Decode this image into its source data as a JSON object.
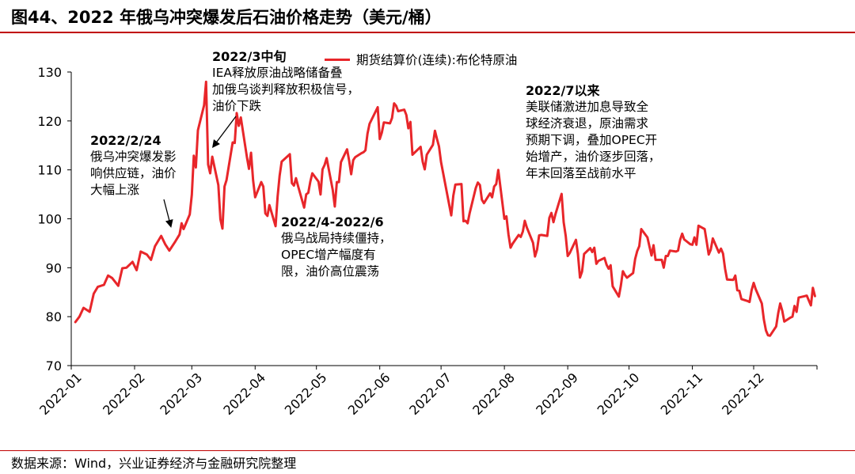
{
  "title": "图44、2022 年俄乌冲突爆发后石油价格走势（美元/桶）",
  "source": "数据来源：Wind，兴业证券经济与金融研究院整理",
  "colors": {
    "series": "#e8262a",
    "accent": "#c00000",
    "axis": "#000000"
  },
  "chart_data": {
    "type": "line",
    "y_ticks": [
      "70",
      "80",
      "90",
      "100",
      "110",
      "120",
      "130"
    ],
    "x_ticks": [
      "2022-01",
      "2022-02",
      "2022-03",
      "2022-04",
      "2022-05",
      "2022-06",
      "2022-07",
      "2022-08",
      "2022-09",
      "2022-10",
      "2022-11",
      "2022-12"
    ],
    "ylim": [
      70,
      130
    ],
    "xlim": [
      "2022-01-01",
      "2022-12-31"
    ],
    "legend": "top-center",
    "grid": false,
    "series": [
      {
        "name": "期货结算价(连续):布伦特原油",
        "points": [
          [
            "2022-01-03",
            78.9
          ],
          [
            "2022-01-05",
            80.0
          ],
          [
            "2022-01-07",
            81.8
          ],
          [
            "2022-01-10",
            81.0
          ],
          [
            "2022-01-12",
            84.7
          ],
          [
            "2022-01-14",
            86.1
          ],
          [
            "2022-01-17",
            86.5
          ],
          [
            "2022-01-19",
            88.4
          ],
          [
            "2022-01-21",
            87.9
          ],
          [
            "2022-01-24",
            86.3
          ],
          [
            "2022-01-26",
            89.9
          ],
          [
            "2022-01-28",
            90.0
          ],
          [
            "2022-01-31",
            91.2
          ],
          [
            "2022-02-02",
            89.5
          ],
          [
            "2022-02-04",
            93.3
          ],
          [
            "2022-02-07",
            92.7
          ],
          [
            "2022-02-09",
            91.6
          ],
          [
            "2022-02-11",
            94.4
          ],
          [
            "2022-02-14",
            96.5
          ],
          [
            "2022-02-16",
            94.8
          ],
          [
            "2022-02-18",
            93.5
          ],
          [
            "2022-02-21",
            95.4
          ],
          [
            "2022-02-23",
            96.8
          ],
          [
            "2022-02-24",
            99.1
          ],
          [
            "2022-02-25",
            97.9
          ],
          [
            "2022-02-28",
            100.9
          ],
          [
            "2022-03-01",
            104.9
          ],
          [
            "2022-03-02",
            112.9
          ],
          [
            "2022-03-03",
            110.5
          ],
          [
            "2022-03-04",
            118.1
          ],
          [
            "2022-03-07",
            123.2
          ],
          [
            "2022-03-08",
            128.0
          ],
          [
            "2022-03-09",
            111.1
          ],
          [
            "2022-03-10",
            109.3
          ],
          [
            "2022-03-11",
            112.7
          ],
          [
            "2022-03-14",
            106.9
          ],
          [
            "2022-03-15",
            99.9
          ],
          [
            "2022-03-16",
            98.0
          ],
          [
            "2022-03-17",
            106.6
          ],
          [
            "2022-03-18",
            107.9
          ],
          [
            "2022-03-21",
            115.6
          ],
          [
            "2022-03-22",
            115.5
          ],
          [
            "2022-03-23",
            121.6
          ],
          [
            "2022-03-24",
            119.0
          ],
          [
            "2022-03-25",
            120.7
          ],
          [
            "2022-03-28",
            112.5
          ],
          [
            "2022-03-29",
            110.2
          ],
          [
            "2022-03-30",
            113.5
          ],
          [
            "2022-03-31",
            107.9
          ],
          [
            "2022-04-01",
            104.4
          ],
          [
            "2022-04-04",
            107.5
          ],
          [
            "2022-04-05",
            106.6
          ],
          [
            "2022-04-06",
            101.1
          ],
          [
            "2022-04-07",
            100.6
          ],
          [
            "2022-04-08",
            102.8
          ],
          [
            "2022-04-11",
            98.5
          ],
          [
            "2022-04-12",
            104.6
          ],
          [
            "2022-04-13",
            108.8
          ],
          [
            "2022-04-14",
            111.7
          ],
          [
            "2022-04-18",
            113.2
          ],
          [
            "2022-04-19",
            107.3
          ],
          [
            "2022-04-20",
            106.8
          ],
          [
            "2022-04-21",
            108.3
          ],
          [
            "2022-04-22",
            106.7
          ],
          [
            "2022-04-25",
            102.3
          ],
          [
            "2022-04-26",
            104.99
          ],
          [
            "2022-04-27",
            105.3
          ],
          [
            "2022-04-28",
            107.6
          ],
          [
            "2022-04-29",
            109.3
          ],
          [
            "2022-05-02",
            107.6
          ],
          [
            "2022-05-03",
            104.97
          ],
          [
            "2022-05-04",
            110.1
          ],
          [
            "2022-05-05",
            111.0
          ],
          [
            "2022-05-06",
            112.4
          ],
          [
            "2022-05-09",
            105.9
          ],
          [
            "2022-05-10",
            102.5
          ],
          [
            "2022-05-11",
            107.5
          ],
          [
            "2022-05-12",
            107.5
          ],
          [
            "2022-05-13",
            111.6
          ],
          [
            "2022-05-16",
            114.2
          ],
          [
            "2022-05-17",
            111.9
          ],
          [
            "2022-05-18",
            109.1
          ],
          [
            "2022-05-19",
            112.0
          ],
          [
            "2022-05-20",
            112.6
          ],
          [
            "2022-05-23",
            113.4
          ],
          [
            "2022-05-24",
            113.6
          ],
          [
            "2022-05-25",
            114.0
          ],
          [
            "2022-05-26",
            117.4
          ],
          [
            "2022-05-27",
            119.4
          ],
          [
            "2022-05-31",
            122.8
          ],
          [
            "2022-06-01",
            116.3
          ],
          [
            "2022-06-02",
            117.6
          ],
          [
            "2022-06-03",
            119.7
          ],
          [
            "2022-06-06",
            119.5
          ],
          [
            "2022-06-07",
            120.6
          ],
          [
            "2022-06-08",
            123.6
          ],
          [
            "2022-06-09",
            123.1
          ],
          [
            "2022-06-10",
            122.0
          ],
          [
            "2022-06-13",
            122.3
          ],
          [
            "2022-06-14",
            121.2
          ],
          [
            "2022-06-15",
            118.5
          ],
          [
            "2022-06-16",
            119.8
          ],
          [
            "2022-06-17",
            113.1
          ],
          [
            "2022-06-21",
            114.7
          ],
          [
            "2022-06-22",
            111.7
          ],
          [
            "2022-06-23",
            110.1
          ],
          [
            "2022-06-24",
            113.1
          ],
          [
            "2022-06-27",
            115.1
          ],
          [
            "2022-06-28",
            118.0
          ],
          [
            "2022-06-29",
            116.3
          ],
          [
            "2022-06-30",
            114.8
          ],
          [
            "2022-07-01",
            111.6
          ],
          [
            "2022-07-05",
            102.8
          ],
          [
            "2022-07-06",
            100.7
          ],
          [
            "2022-07-07",
            104.7
          ],
          [
            "2022-07-08",
            107.0
          ],
          [
            "2022-07-11",
            107.1
          ],
          [
            "2022-07-12",
            99.5
          ],
          [
            "2022-07-13",
            99.6
          ],
          [
            "2022-07-14",
            99.1
          ],
          [
            "2022-07-15",
            101.2
          ],
          [
            "2022-07-18",
            106.3
          ],
          [
            "2022-07-19",
            107.4
          ],
          [
            "2022-07-20",
            106.9
          ],
          [
            "2022-07-21",
            103.9
          ],
          [
            "2022-07-22",
            103.2
          ],
          [
            "2022-07-25",
            105.2
          ],
          [
            "2022-07-26",
            104.4
          ],
          [
            "2022-07-27",
            106.6
          ],
          [
            "2022-07-28",
            107.1
          ],
          [
            "2022-07-29",
            110.0
          ],
          [
            "2022-08-01",
            100.0
          ],
          [
            "2022-08-02",
            100.5
          ],
          [
            "2022-08-03",
            96.8
          ],
          [
            "2022-08-04",
            94.1
          ],
          [
            "2022-08-05",
            94.9
          ],
          [
            "2022-08-08",
            96.7
          ],
          [
            "2022-08-09",
            96.3
          ],
          [
            "2022-08-10",
            97.4
          ],
          [
            "2022-08-11",
            99.6
          ],
          [
            "2022-08-12",
            98.2
          ],
          [
            "2022-08-15",
            95.1
          ],
          [
            "2022-08-16",
            92.3
          ],
          [
            "2022-08-17",
            93.7
          ],
          [
            "2022-08-18",
            96.6
          ],
          [
            "2022-08-19",
            96.7
          ],
          [
            "2022-08-22",
            96.5
          ],
          [
            "2022-08-23",
            100.2
          ],
          [
            "2022-08-24",
            101.2
          ],
          [
            "2022-08-25",
            99.3
          ],
          [
            "2022-08-26",
            100.99
          ],
          [
            "2022-08-29",
            105.1
          ],
          [
            "2022-08-30",
            99.3
          ],
          [
            "2022-08-31",
            96.5
          ],
          [
            "2022-09-01",
            92.4
          ],
          [
            "2022-09-02",
            93.0
          ],
          [
            "2022-09-05",
            95.7
          ],
          [
            "2022-09-06",
            92.8
          ],
          [
            "2022-09-07",
            88.0
          ],
          [
            "2022-09-08",
            89.2
          ],
          [
            "2022-09-09",
            92.8
          ],
          [
            "2022-09-12",
            94.0
          ],
          [
            "2022-09-13",
            93.2
          ],
          [
            "2022-09-14",
            94.1
          ],
          [
            "2022-09-15",
            90.8
          ],
          [
            "2022-09-16",
            91.4
          ],
          [
            "2022-09-19",
            92.0
          ],
          [
            "2022-09-20",
            90.6
          ],
          [
            "2022-09-21",
            89.8
          ],
          [
            "2022-09-22",
            90.5
          ],
          [
            "2022-09-23",
            86.2
          ],
          [
            "2022-09-26",
            84.1
          ],
          [
            "2022-09-27",
            86.3
          ],
          [
            "2022-09-28",
            89.3
          ],
          [
            "2022-09-29",
            88.5
          ],
          [
            "2022-09-30",
            87.96
          ],
          [
            "2022-10-03",
            88.9
          ],
          [
            "2022-10-04",
            91.8
          ],
          [
            "2022-10-05",
            93.4
          ],
          [
            "2022-10-06",
            94.4
          ],
          [
            "2022-10-07",
            97.9
          ],
          [
            "2022-10-10",
            96.2
          ],
          [
            "2022-10-11",
            94.3
          ],
          [
            "2022-10-12",
            92.5
          ],
          [
            "2022-10-13",
            94.6
          ],
          [
            "2022-10-14",
            91.6
          ],
          [
            "2022-10-17",
            91.6
          ],
          [
            "2022-10-18",
            90.0
          ],
          [
            "2022-10-19",
            92.4
          ],
          [
            "2022-10-20",
            92.4
          ],
          [
            "2022-10-21",
            93.5
          ],
          [
            "2022-10-24",
            93.3
          ],
          [
            "2022-10-25",
            93.5
          ],
          [
            "2022-10-26",
            95.7
          ],
          [
            "2022-10-27",
            96.96
          ],
          [
            "2022-10-28",
            95.8
          ],
          [
            "2022-10-31",
            94.8
          ],
          [
            "2022-11-01",
            94.7
          ],
          [
            "2022-11-02",
            96.2
          ],
          [
            "2022-11-03",
            94.7
          ],
          [
            "2022-11-04",
            98.6
          ],
          [
            "2022-11-07",
            97.9
          ],
          [
            "2022-11-08",
            95.4
          ],
          [
            "2022-11-09",
            92.7
          ],
          [
            "2022-11-10",
            93.7
          ],
          [
            "2022-11-11",
            95.99
          ],
          [
            "2022-11-14",
            93.1
          ],
          [
            "2022-11-15",
            93.9
          ],
          [
            "2022-11-16",
            92.9
          ],
          [
            "2022-11-17",
            89.8
          ],
          [
            "2022-11-18",
            87.6
          ],
          [
            "2022-11-21",
            87.5
          ],
          [
            "2022-11-22",
            88.4
          ],
          [
            "2022-11-23",
            85.4
          ],
          [
            "2022-11-24",
            85.3
          ],
          [
            "2022-11-25",
            83.6
          ],
          [
            "2022-11-28",
            83.2
          ],
          [
            "2022-11-29",
            83.0
          ],
          [
            "2022-11-30",
            85.4
          ],
          [
            "2022-12-01",
            86.9
          ],
          [
            "2022-12-02",
            85.6
          ],
          [
            "2022-12-05",
            82.7
          ],
          [
            "2022-12-06",
            79.4
          ],
          [
            "2022-12-07",
            77.2
          ],
          [
            "2022-12-08",
            76.2
          ],
          [
            "2022-12-09",
            76.1
          ],
          [
            "2022-12-12",
            77.99
          ],
          [
            "2022-12-13",
            80.7
          ],
          [
            "2022-12-14",
            82.7
          ],
          [
            "2022-12-15",
            81.2
          ],
          [
            "2022-12-16",
            79.0
          ],
          [
            "2022-12-19",
            79.8
          ],
          [
            "2022-12-20",
            79.99
          ],
          [
            "2022-12-21",
            82.2
          ],
          [
            "2022-12-22",
            80.98
          ],
          [
            "2022-12-23",
            83.9
          ],
          [
            "2022-12-27",
            84.3
          ],
          [
            "2022-12-28",
            83.3
          ],
          [
            "2022-12-29",
            82.3
          ],
          [
            "2022-12-30",
            85.9
          ],
          [
            "2022-12-31",
            84.2
          ]
        ]
      }
    ]
  },
  "annotations": [
    {
      "id": "feb24",
      "heading": "2022/2/24",
      "lines": [
        "俄乌冲突爆发影",
        "响供应链，油价",
        "大幅上涨"
      ]
    },
    {
      "id": "mar",
      "heading": "2022/3中旬",
      "lines": [
        "IEA释放原油战略储备叠",
        "加俄乌谈判释放积极信号，",
        "油价下跌"
      ]
    },
    {
      "id": "aprjun",
      "heading": "2022/4-2022/6",
      "lines": [
        "俄乌战局持续僵持，",
        "OPEC增产幅度有",
        "限，油价高位震荡"
      ]
    },
    {
      "id": "jul",
      "heading": "2022/7以来",
      "lines": [
        "美联储激进加息导致全",
        "球经济衰退，原油需求",
        "预期下调，叠加OPEC开",
        "始增产，油价逐步回落，",
        "年末回落至战前水平"
      ]
    }
  ]
}
